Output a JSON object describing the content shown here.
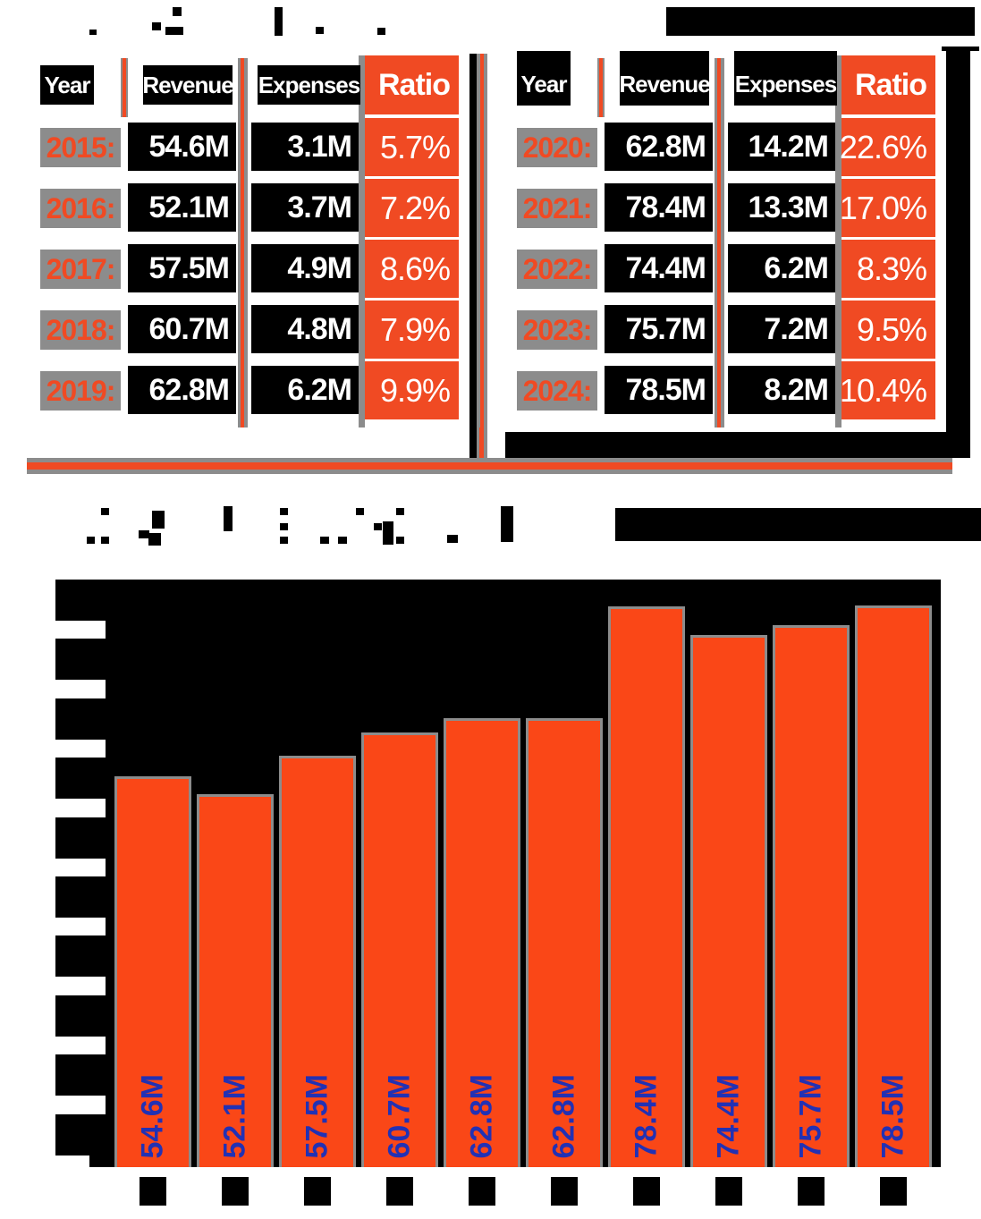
{
  "colors": {
    "orange_bar": "#FA4717",
    "orange_accent": "#F04A23",
    "divider_gray": "#8C8C8C",
    "label_blue": "#2231B4",
    "cell_black": "#000000",
    "text_white": "#FFFFFF"
  },
  "tables": [
    {
      "headers": {
        "year": "Year",
        "revenue": "Revenue",
        "expenses": "Expenses",
        "ratio": "Ratio"
      },
      "rows": [
        {
          "year": "2015:",
          "revenue": "54.6M",
          "expenses": "3.1M",
          "ratio": "5.7%"
        },
        {
          "year": "2016:",
          "revenue": "52.1M",
          "expenses": "3.7M",
          "ratio": "7.2%"
        },
        {
          "year": "2017:",
          "revenue": "57.5M",
          "expenses": "4.9M",
          "ratio": "8.6%"
        },
        {
          "year": "2018:",
          "revenue": "60.7M",
          "expenses": "4.8M",
          "ratio": "7.9%"
        },
        {
          "year": "2019:",
          "revenue": "62.8M",
          "expenses": "6.2M",
          "ratio": "9.9%"
        }
      ]
    },
    {
      "headers": {
        "year": "Year",
        "revenue": "Revenue",
        "expenses": "Expenses",
        "ratio": "Ratio"
      },
      "rows": [
        {
          "year": "2020:",
          "revenue": "62.8M",
          "expenses": "14.2M",
          "ratio": "22.6%"
        },
        {
          "year": "2021:",
          "revenue": "78.4M",
          "expenses": "13.3M",
          "ratio": "17.0%"
        },
        {
          "year": "2022:",
          "revenue": "74.4M",
          "expenses": "6.2M",
          "ratio": "8.3%"
        },
        {
          "year": "2023:",
          "revenue": "75.7M",
          "expenses": "7.2M",
          "ratio": "9.5%"
        },
        {
          "year": "2024:",
          "revenue": "78.5M",
          "expenses": "8.2M",
          "ratio": "10.4%"
        }
      ]
    }
  ],
  "chart_data": {
    "type": "bar",
    "categories": [
      "2015",
      "2016",
      "2017",
      "2018",
      "2019",
      "2020",
      "2021",
      "2022",
      "2023",
      "2024"
    ],
    "values": [
      54.6,
      52.1,
      57.5,
      60.7,
      62.8,
      62.8,
      78.4,
      74.4,
      75.7,
      78.5
    ],
    "bar_labels": [
      "54.6M",
      "52.1M",
      "57.5M",
      "60.7M",
      "62.8M",
      "62.8M",
      "78.4M",
      "74.4M",
      "75.7M",
      "78.5M"
    ],
    "title": "",
    "xlabel": "",
    "ylabel": "",
    "ylim": [
      0,
      80
    ],
    "grid": false,
    "legend": "none",
    "plot_background": "#000000",
    "bar_color": "#FA4717",
    "bar_label_color": "#2231B4",
    "bar_label_rotation": -90
  }
}
